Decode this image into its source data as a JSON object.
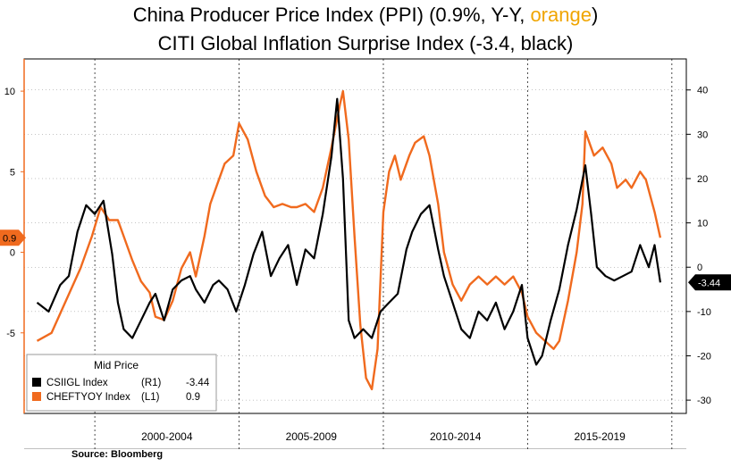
{
  "title_parts": {
    "line1_prefix": "China Producer Price Index (PPI) (0.9%, Y-Y, ",
    "line1_orange": "orange",
    "line1_suffix": ")",
    "line2": "CITI Global Inflation Surprise Index (-3.4, black)"
  },
  "source": "Source: Bloomberg",
  "colors": {
    "ppi": "#f06a1e",
    "citi": "#000000",
    "legend_bg": "#ffffff",
    "legend_border": "#999999"
  },
  "chart_data": {
    "type": "line",
    "x_period_labels": [
      "2000-2004",
      "2005-2009",
      "2010-2014",
      "2015-2019"
    ],
    "left_axis": {
      "ylim": [
        -10,
        12
      ],
      "ticks": [
        "10",
        "5",
        "0",
        "-5"
      ],
      "tick_values": [
        10,
        5,
        0,
        -5
      ],
      "last_label": "0.9"
    },
    "right_axis": {
      "ylim": [
        -33,
        47
      ],
      "ticks": [
        "40",
        "30",
        "20",
        "10",
        "0",
        "-10",
        "-20",
        "-30"
      ],
      "tick_values": [
        40,
        30,
        20,
        10,
        0,
        -10,
        -20,
        -30
      ],
      "last_label": "-3.44"
    },
    "legend": {
      "header": "Mid Price",
      "items": [
        {
          "name": "CSIIGL Index",
          "axis": "(R1)",
          "value": "-3.44"
        },
        {
          "name": "CHEFTYOY Index",
          "axis": "(L1)",
          "value": "0.9"
        }
      ]
    },
    "series": [
      {
        "name": "CHEFTYOY Index",
        "axis": "left",
        "x": [
          1998.0,
          1998.5,
          1999.0,
          1999.5,
          1999.9,
          2000.2,
          2000.5,
          2000.8,
          2001.0,
          2001.3,
          2001.6,
          2001.9,
          2002.1,
          2002.4,
          2002.7,
          2003.0,
          2003.3,
          2003.5,
          2003.8,
          2004.0,
          2004.3,
          2004.5,
          2004.8,
          2005.0,
          2005.3,
          2005.6,
          2005.9,
          2006.2,
          2006.5,
          2006.8,
          2007.0,
          2007.3,
          2007.6,
          2007.9,
          2008.2,
          2008.5,
          2008.6,
          2008.8,
          2009.0,
          2009.2,
          2009.4,
          2009.6,
          2009.8,
          2010.0,
          2010.2,
          2010.4,
          2010.6,
          2010.9,
          2011.1,
          2011.4,
          2011.6,
          2011.9,
          2012.1,
          2012.4,
          2012.7,
          2013.0,
          2013.3,
          2013.6,
          2013.9,
          2014.2,
          2014.5,
          2014.8,
          2015.0,
          2015.3,
          2015.6,
          2015.9,
          2016.1,
          2016.4,
          2016.7,
          2016.9,
          2017.0,
          2017.3,
          2017.6,
          2017.9,
          2018.1,
          2018.4,
          2018.6,
          2018.9,
          2019.1,
          2019.4,
          2019.6
        ],
        "y": [
          -5.5,
          -5.0,
          -3.0,
          -1.0,
          1.0,
          2.8,
          2.0,
          2.0,
          1.0,
          -0.5,
          -1.8,
          -2.5,
          -4.0,
          -4.2,
          -3.0,
          -1.0,
          0.0,
          -1.5,
          1.0,
          3.0,
          4.5,
          5.5,
          6.0,
          8.0,
          7.0,
          5.0,
          3.5,
          2.8,
          3.0,
          2.8,
          2.8,
          3.0,
          2.5,
          4.0,
          6.5,
          9.2,
          10.0,
          7.0,
          1.0,
          -4.5,
          -7.8,
          -8.5,
          -6.0,
          2.5,
          5.0,
          6.0,
          4.5,
          6.0,
          6.8,
          7.2,
          6.0,
          3.0,
          0.0,
          -2.0,
          -3.0,
          -2.0,
          -1.5,
          -2.0,
          -1.5,
          -2.0,
          -1.5,
          -2.5,
          -4.0,
          -5.0,
          -5.5,
          -6.0,
          -5.5,
          -3.0,
          0.0,
          3.0,
          7.5,
          6.0,
          6.5,
          5.5,
          4.0,
          4.5,
          4.0,
          5.0,
          4.5,
          2.5,
          0.9
        ]
      },
      {
        "name": "CSIIGL Index",
        "axis": "right",
        "x": [
          1998.0,
          1998.4,
          1998.8,
          1999.1,
          1999.4,
          1999.7,
          2000.0,
          2000.3,
          2000.6,
          2000.8,
          2001.0,
          2001.3,
          2001.6,
          2001.9,
          2002.1,
          2002.4,
          2002.7,
          2003.0,
          2003.3,
          2003.5,
          2003.8,
          2004.1,
          2004.3,
          2004.6,
          2004.9,
          2005.2,
          2005.5,
          2005.8,
          2006.1,
          2006.4,
          2006.7,
          2007.0,
          2007.3,
          2007.6,
          2007.9,
          2008.2,
          2008.4,
          2008.6,
          2008.8,
          2009.0,
          2009.3,
          2009.6,
          2009.9,
          2010.2,
          2010.5,
          2010.8,
          2011.0,
          2011.3,
          2011.6,
          2011.9,
          2012.1,
          2012.4,
          2012.7,
          2013.0,
          2013.3,
          2013.6,
          2013.9,
          2014.2,
          2014.5,
          2014.8,
          2015.0,
          2015.3,
          2015.5,
          2015.8,
          2016.1,
          2016.4,
          2016.7,
          2017.0,
          2017.2,
          2017.4,
          2017.7,
          2018.0,
          2018.3,
          2018.6,
          2018.9,
          2019.2,
          2019.4,
          2019.6
        ],
        "y": [
          -8,
          -10,
          -4,
          -2,
          8,
          14,
          12,
          15,
          3,
          -8,
          -14,
          -16,
          -12,
          -8,
          -6,
          -12,
          -5,
          -3,
          -2,
          -5,
          -8,
          -4,
          -3,
          -5,
          -10,
          -4,
          3,
          8,
          -2,
          2,
          5,
          -4,
          4,
          2,
          12,
          25,
          38,
          20,
          -12,
          -16,
          -14,
          -16,
          -10,
          -8,
          -6,
          4,
          8,
          12,
          14,
          4,
          -2,
          -8,
          -14,
          -16,
          -10,
          -12,
          -8,
          -14,
          -10,
          -4,
          -16,
          -22,
          -20,
          -12,
          -5,
          5,
          13,
          23,
          12,
          0,
          -2,
          -3,
          -2,
          -1,
          5,
          0,
          5,
          -3.44
        ]
      }
    ]
  }
}
